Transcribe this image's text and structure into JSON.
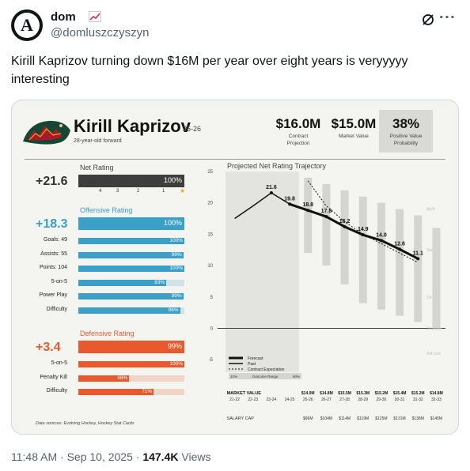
{
  "tweet": {
    "author_name": "dom",
    "author_emoji": "chart-increasing-icon",
    "handle": "@domluszczyszyn",
    "avatar_letter": "A",
    "text": "Kirill Kaprizov turning down $16M per year over eight years is veryyyyy interesting",
    "time": "11:48 AM",
    "date": "Sep 10, 2025",
    "views_count": "147.4K",
    "views_label": "Views",
    "sep": "·"
  },
  "card": {
    "player_name": "Kirill Kaprizov",
    "season": "25-26",
    "subtitle": "28-year-old forward",
    "contract_projection": {
      "value": "$16.0M",
      "label_line1": "Contract",
      "label_line2": "Projection"
    },
    "market_value": {
      "value": "$15.0M",
      "label": "Market Value"
    },
    "positive_value": {
      "value": "38%",
      "label_line1": "Positive Value",
      "label_line2": "Probability"
    },
    "net_rating": {
      "label": "Net Rating",
      "value": "+21.6",
      "pct": "100%",
      "color": "#3d3d3d",
      "tick_labels": [
        "4",
        "3",
        "2",
        "1"
      ]
    },
    "offensive_rating": {
      "label": "Offensive Rating",
      "value": "+18.3",
      "pct": "100%",
      "color": "#3aa0c8",
      "rows": [
        {
          "label": "Goals: 49",
          "pct": "100%",
          "fill": 1.0
        },
        {
          "label": "Assists: 55",
          "pct": "99%",
          "fill": 0.99
        },
        {
          "label": "Points: 104",
          "pct": "100%",
          "fill": 1.0
        },
        {
          "label": "5-on-5",
          "pct": "83%",
          "fill": 0.83
        },
        {
          "label": "Power Play",
          "pct": "99%",
          "fill": 0.99
        },
        {
          "label": "Difficulty",
          "pct": "96%",
          "fill": 0.96
        }
      ]
    },
    "defensive_rating": {
      "label": "Defensive Rating",
      "value": "+3.4",
      "pct": "99%",
      "color": "#e85a2e",
      "rows": [
        {
          "label": "5-on-5",
          "pct": "100%",
          "fill": 1.0
        },
        {
          "label": "Penalty Kill",
          "pct": "48%",
          "fill": 0.48
        },
        {
          "label": "Difficulty",
          "pct": "71%",
          "fill": 0.71
        }
      ]
    },
    "data_sources": "Data sources: Evolving Hockey, Hockey Stat Cards"
  },
  "chart_data": {
    "type": "line",
    "title": "Projected Net Rating Trajectory",
    "ylim": [
      -7,
      25
    ],
    "y_ticks": [
      25,
      20,
      15,
      10,
      5,
      0,
      -5
    ],
    "x": [
      "21-22",
      "22-23",
      "23-24",
      "24-25",
      "25-26",
      "26-27",
      "27-28",
      "28-29",
      "29-30",
      "30-31",
      "31-32",
      "32-33"
    ],
    "x_header": "MARKET VALUE",
    "market_values": [
      "",
      "",
      "",
      "",
      "$14.0M",
      "$14.8M",
      "$15.5M",
      "$15.3M",
      "$15.2M",
      "$15.4M",
      "$15.2M",
      "$14.8M"
    ],
    "salary_cap_label": "SALARY CAP",
    "salary_caps": [
      "",
      "",
      "",
      "",
      "$96M",
      "$104M",
      "$114M",
      "$119M",
      "$125M",
      "$131M",
      "$138M",
      "$145M"
    ],
    "tier_labels": [
      "MVP",
      "Star",
      "1st Line",
      "2nd Line",
      "3rd Line"
    ],
    "series": [
      {
        "name": "Past",
        "values": [
          17.5,
          19.5,
          21.6,
          19.8,
          null,
          null,
          null,
          null,
          null,
          null,
          null,
          null
        ]
      },
      {
        "name": "Forecast",
        "values": [
          null,
          null,
          null,
          19.8,
          18.8,
          17.8,
          16.2,
          14.9,
          14.0,
          12.6,
          11.1,
          null
        ]
      },
      {
        "name": "Contract Expectation",
        "values": [
          null,
          null,
          null,
          null,
          23.5,
          19.5,
          17.0,
          15.0,
          13.5,
          12.0,
          10.5,
          null
        ]
      }
    ],
    "point_labels": [
      "21.6",
      "19.8",
      "18.8",
      "17.8",
      "16.2",
      "14.9",
      "14.0",
      "12.6",
      "11.1"
    ],
    "legend": {
      "forecast": "Forecast",
      "past": "Past",
      "contract": "Contract Expectation",
      "range_low": "10%",
      "range_mid": "Outcome Range",
      "range_high": "90%"
    },
    "outcome_range": [
      [
        null,
        null
      ],
      [
        null,
        null
      ],
      [
        null,
        null
      ],
      [
        null,
        null
      ],
      [
        12,
        24
      ],
      [
        10,
        23
      ],
      [
        7,
        22
      ],
      [
        4,
        21
      ],
      [
        3,
        20
      ],
      [
        2,
        19
      ],
      [
        1,
        18
      ],
      [
        0,
        16
      ]
    ]
  }
}
